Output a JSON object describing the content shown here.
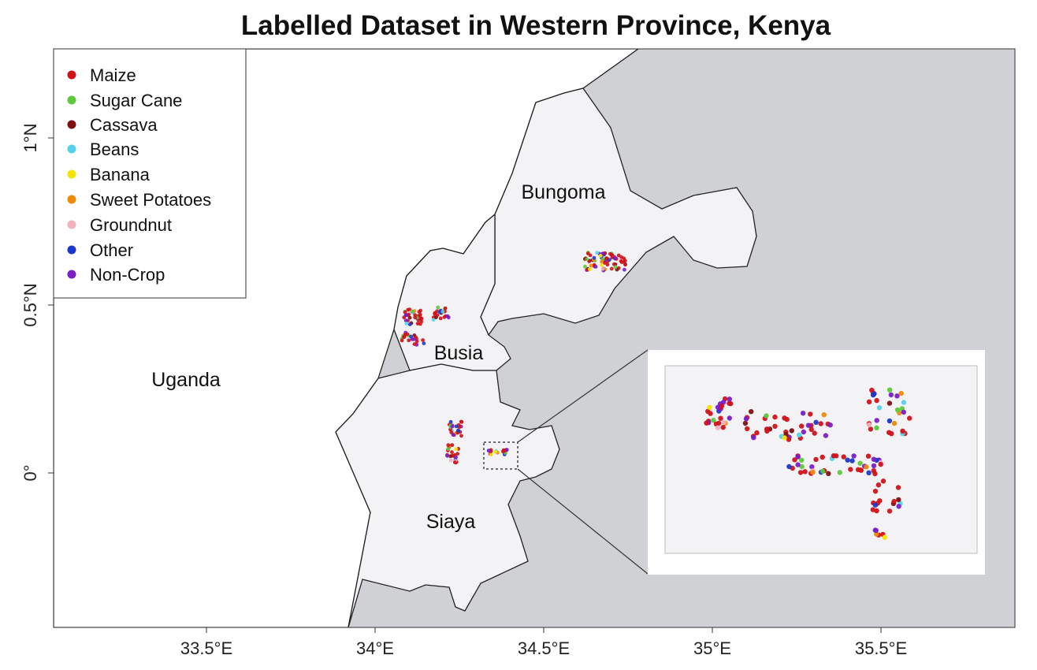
{
  "title": "Labelled Dataset in Western Province, Kenya",
  "axes": {
    "x_ticks": [
      "33.5°E",
      "34°E",
      "34.5°E",
      "35°E",
      "35.5°E"
    ],
    "y_ticks": [
      "1°N",
      "0.5°N",
      "0°"
    ]
  },
  "regions": {
    "uganda": "Uganda",
    "bungoma": "Bungoma",
    "busia": "Busia",
    "siaya": "Siaya"
  },
  "colors": {
    "outside": "#cfd1d5",
    "province": "#f3f3f5",
    "uganda": "#ffffff",
    "inset_bg": "#f3f3f5"
  },
  "legend": [
    {
      "label": "Maize",
      "color": "#d0121a"
    },
    {
      "label": "Sugar Cane",
      "color": "#5cc83a"
    },
    {
      "label": "Cassava",
      "color": "#7d1111"
    },
    {
      "label": "Beans",
      "color": "#55d2ea"
    },
    {
      "label": "Banana",
      "color": "#f5e400"
    },
    {
      "label": "Sweet Potatoes",
      "color": "#ee8a08"
    },
    {
      "label": "Groundnut",
      "color": "#f0b3bd"
    },
    {
      "label": "Other",
      "color": "#1d38c8"
    },
    {
      "label": "Non-Crop",
      "color": "#7a1ec6"
    }
  ]
}
